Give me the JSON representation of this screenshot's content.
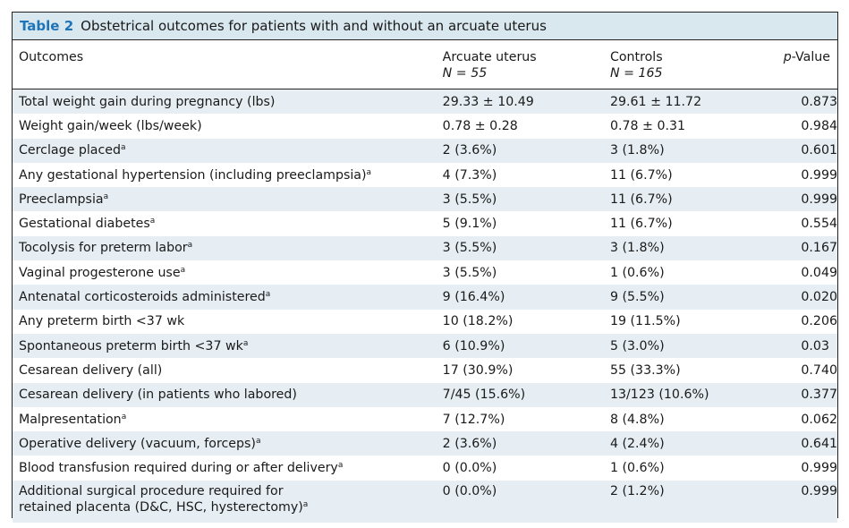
{
  "title": {
    "label": "Table 2",
    "text": "Obstetrical outcomes for patients with and without an arcuate uterus"
  },
  "headers": {
    "outcomes": "Outcomes",
    "arcuate": "Arcuate uterus",
    "arcuate_n": "N = 55",
    "controls": "Controls",
    "controls_n": "N = 165",
    "pvalue": "p-Value"
  },
  "footnote_marker": "a",
  "rows": [
    {
      "outcome": "Total weight gain during pregnancy (lbs)",
      "sup": "",
      "arcuate": "29.33 ± 10.49",
      "controls": "29.61 ± 11.72",
      "p": "0.873"
    },
    {
      "outcome": "Weight gain/week (lbs/week)",
      "sup": "",
      "arcuate": "0.78 ± 0.28",
      "controls": "0.78 ± 0.31",
      "p": "0.984"
    },
    {
      "outcome": "Cerclage placed",
      "sup": "a",
      "arcuate": "2 (3.6%)",
      "controls": "3 (1.8%)",
      "p": "0.601"
    },
    {
      "outcome": "Any gestational hypertension (including preeclampsia)",
      "sup": "a",
      "arcuate": "4 (7.3%)",
      "controls": "11 (6.7%)",
      "p": "0.999"
    },
    {
      "outcome": "Preeclampsia",
      "sup": "a",
      "arcuate": "3 (5.5%)",
      "controls": "11 (6.7%)",
      "p": "0.999"
    },
    {
      "outcome": "Gestational diabetes",
      "sup": "a",
      "arcuate": "5 (9.1%)",
      "controls": "11 (6.7%)",
      "p": "0.554"
    },
    {
      "outcome": "Tocolysis for preterm labor",
      "sup": "a",
      "arcuate": "3 (5.5%)",
      "controls": "3 (1.8%)",
      "p": "0.167"
    },
    {
      "outcome": "Vaginal progesterone use",
      "sup": "a",
      "arcuate": "3 (5.5%)",
      "controls": "1 (0.6%)",
      "p": "0.049"
    },
    {
      "outcome": "Antenatal corticosteroids administered",
      "sup": "a",
      "arcuate": "9 (16.4%)",
      "controls": "9 (5.5%)",
      "p": "0.020"
    },
    {
      "outcome": "Any preterm birth <37 wk",
      "sup": "",
      "arcuate": "10 (18.2%)",
      "controls": "19 (11.5%)",
      "p": "0.206"
    },
    {
      "outcome": "Spontaneous preterm birth <37 wk",
      "sup": "a",
      "arcuate": "6 (10.9%)",
      "controls": "5 (3.0%)",
      "p": "0.03"
    },
    {
      "outcome": "Cesarean delivery (all)",
      "sup": "",
      "arcuate": "17 (30.9%)",
      "controls": "55 (33.3%)",
      "p": "0.740"
    },
    {
      "outcome": "Cesarean delivery (in patients who labored)",
      "sup": "",
      "arcuate": "7/45 (15.6%)",
      "controls": "13/123 (10.6%)",
      "p": "0.377"
    },
    {
      "outcome": "Malpresentation",
      "sup": "a",
      "arcuate": "7 (12.7%)",
      "controls": "8 (4.8%)",
      "p": "0.062"
    },
    {
      "outcome": "Operative delivery (vacuum, forceps)",
      "sup": "a",
      "arcuate": "2 (3.6%)",
      "controls": "4 (2.4%)",
      "p": "0.641"
    },
    {
      "outcome": "Blood transfusion required during or after delivery",
      "sup": "a",
      "arcuate": "0 (0.0%)",
      "controls": "1 (0.6%)",
      "p": "0.999"
    }
  ],
  "last_row": {
    "outcome_line1": "Additional surgical procedure required for",
    "outcome_line2": "retained placenta (D&C, HSC, hysterectomy)",
    "sup": "a",
    "arcuate": "0 (0.0%)",
    "controls": "2 (1.2%)",
    "p": "0.999"
  }
}
